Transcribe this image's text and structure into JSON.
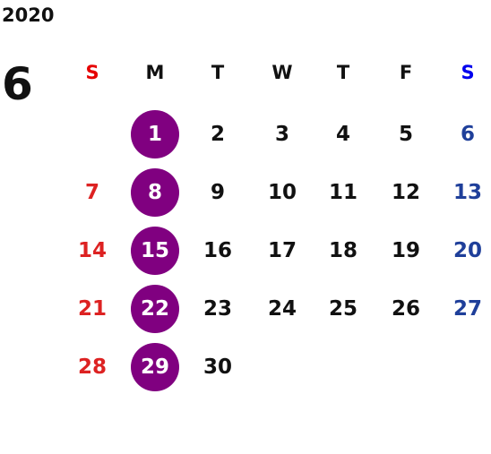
{
  "header": {
    "year": "2020",
    "month": "6"
  },
  "weekdays": [
    "S",
    "M",
    "T",
    "W",
    "T",
    "F",
    "S"
  ],
  "weeks": [
    [
      null,
      1,
      2,
      3,
      4,
      5,
      6
    ],
    [
      7,
      8,
      9,
      10,
      11,
      12,
      13
    ],
    [
      14,
      15,
      16,
      17,
      18,
      19,
      20
    ],
    [
      21,
      22,
      23,
      24,
      25,
      26,
      27
    ],
    [
      28,
      29,
      30,
      null,
      null,
      null,
      null
    ]
  ]
}
